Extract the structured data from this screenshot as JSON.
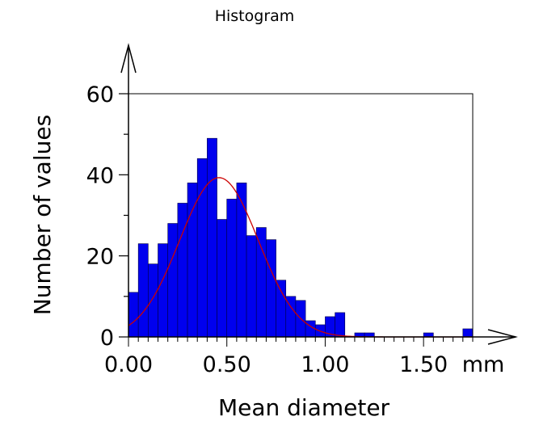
{
  "chart_data": {
    "type": "bar",
    "title": "Histogram",
    "xlabel": "Mean diameter",
    "ylabel": "Number of values",
    "x_unit": "mm",
    "xlim": [
      0.0,
      1.75
    ],
    "ylim": [
      0,
      60
    ],
    "bin_width": 0.05,
    "x_ticks": [
      {
        "value": 0.0,
        "label": "0.00"
      },
      {
        "value": 0.5,
        "label": "0.50"
      },
      {
        "value": 1.0,
        "label": "1.00"
      },
      {
        "value": 1.5,
        "label": "1.50"
      }
    ],
    "y_ticks": [
      {
        "value": 0,
        "label": "0"
      },
      {
        "value": 20,
        "label": "20"
      },
      {
        "value": 40,
        "label": "40"
      },
      {
        "value": 60,
        "label": "60"
      }
    ],
    "grid": false,
    "bars": [
      {
        "x0": 0.0,
        "x1": 0.05,
        "value": 11
      },
      {
        "x0": 0.05,
        "x1": 0.1,
        "value": 23
      },
      {
        "x0": 0.1,
        "x1": 0.15,
        "value": 18
      },
      {
        "x0": 0.15,
        "x1": 0.2,
        "value": 23
      },
      {
        "x0": 0.2,
        "x1": 0.25,
        "value": 28
      },
      {
        "x0": 0.25,
        "x1": 0.3,
        "value": 33
      },
      {
        "x0": 0.3,
        "x1": 0.35,
        "value": 38
      },
      {
        "x0": 0.35,
        "x1": 0.4,
        "value": 44
      },
      {
        "x0": 0.4,
        "x1": 0.45,
        "value": 49
      },
      {
        "x0": 0.45,
        "x1": 0.5,
        "value": 29
      },
      {
        "x0": 0.5,
        "x1": 0.55,
        "value": 34
      },
      {
        "x0": 0.55,
        "x1": 0.6,
        "value": 38
      },
      {
        "x0": 0.6,
        "x1": 0.65,
        "value": 25
      },
      {
        "x0": 0.65,
        "x1": 0.7,
        "value": 27
      },
      {
        "x0": 0.7,
        "x1": 0.75,
        "value": 24
      },
      {
        "x0": 0.75,
        "x1": 0.8,
        "value": 14
      },
      {
        "x0": 0.8,
        "x1": 0.85,
        "value": 10
      },
      {
        "x0": 0.85,
        "x1": 0.9,
        "value": 9
      },
      {
        "x0": 0.9,
        "x1": 0.95,
        "value": 4
      },
      {
        "x0": 0.95,
        "x1": 1.0,
        "value": 3
      },
      {
        "x0": 1.0,
        "x1": 1.05,
        "value": 5
      },
      {
        "x0": 1.05,
        "x1": 1.1,
        "value": 6
      },
      {
        "x0": 1.1,
        "x1": 1.15,
        "value": 0
      },
      {
        "x0": 1.15,
        "x1": 1.2,
        "value": 1
      },
      {
        "x0": 1.2,
        "x1": 1.25,
        "value": 1
      },
      {
        "x0": 1.25,
        "x1": 1.3,
        "value": 0
      },
      {
        "x0": 1.3,
        "x1": 1.35,
        "value": 0
      },
      {
        "x0": 1.35,
        "x1": 1.4,
        "value": 0
      },
      {
        "x0": 1.4,
        "x1": 1.45,
        "value": 0
      },
      {
        "x0": 1.45,
        "x1": 1.5,
        "value": 0
      },
      {
        "x0": 1.5,
        "x1": 1.55,
        "value": 1
      },
      {
        "x0": 1.55,
        "x1": 1.6,
        "value": 0
      },
      {
        "x0": 1.6,
        "x1": 1.65,
        "value": 0
      },
      {
        "x0": 1.65,
        "x1": 1.7,
        "value": 0
      },
      {
        "x0": 1.7,
        "x1": 1.75,
        "value": 2
      }
    ],
    "fit_curve": {
      "type": "normal",
      "mean": 0.46,
      "sd": 0.2,
      "peak": 39.3
    },
    "colors": {
      "bar_fill": "#0000ee",
      "bar_stroke": "#000044",
      "fit_curve": "#cc0000",
      "axis": "#000000"
    }
  }
}
